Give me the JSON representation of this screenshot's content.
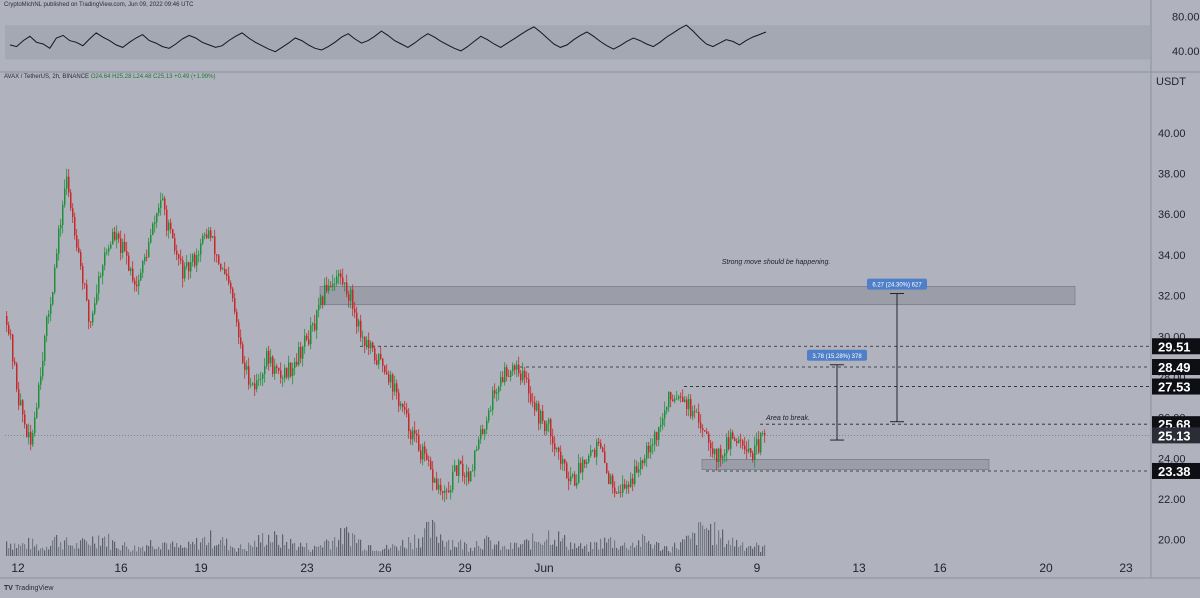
{
  "header": {
    "published": "CryptoMichNL published on TradingView.com, Jun 09, 2022 09:46 UTC",
    "symbol": "AVAX / TetherUS, 2h, BINANCE",
    "ohlc": "O24.64  H25.28  L24.48  C25.13  +0.49 (+1.99%)"
  },
  "footer": {
    "logo_mark": "TV",
    "logo_text": "TradingView"
  },
  "colors": {
    "background": "#b0b3be",
    "up": "#1f8f3a",
    "down": "#c42a2a",
    "zone_fill": "#9b9ea9",
    "axis_text": "#1f222b",
    "badge_bg": "#0d0f14",
    "measure_label_bg": "#4f7fc9"
  },
  "chart_data": [
    {
      "type": "line",
      "name": "RSI panel",
      "yticks": [
        40,
        80
      ],
      "ytick_labels": [
        "40.00",
        "80.00"
      ],
      "band": [
        30,
        70
      ],
      "ylim": [
        20,
        90
      ],
      "values": [
        47,
        45,
        52,
        57,
        50,
        48,
        43,
        55,
        58,
        52,
        50,
        46,
        54,
        61,
        56,
        52,
        47,
        44,
        50,
        55,
        59,
        52,
        49,
        45,
        43,
        48,
        54,
        58,
        55,
        50,
        47,
        44,
        46,
        52,
        57,
        61,
        55,
        50,
        46,
        42,
        39,
        44,
        49,
        55,
        52,
        47,
        43,
        41,
        45,
        50,
        56,
        60,
        54,
        49,
        52,
        57,
        63,
        58,
        52,
        48,
        44,
        49,
        55,
        60,
        56,
        51,
        47,
        43,
        40,
        45,
        51,
        57,
        53,
        48,
        44,
        49,
        54,
        59,
        64,
        68,
        62,
        55,
        48,
        44,
        47,
        53,
        58,
        62,
        57,
        51,
        46,
        42,
        46,
        51,
        55,
        52,
        48,
        45,
        50,
        56,
        61,
        66,
        70,
        63,
        55,
        48,
        45,
        49,
        53,
        51,
        47,
        52,
        56,
        59,
        62
      ]
    },
    {
      "type": "candlestick",
      "name": "AVAX / TetherUS, 2h, BINANCE",
      "ylabel": "USDT",
      "ylim": [
        19.2,
        42.5
      ],
      "yticks": [
        20,
        22,
        24,
        26,
        28,
        30,
        32,
        34,
        36,
        38,
        40
      ],
      "ytick_labels": [
        "20.00",
        "22.00",
        "24.00",
        "26.00",
        "28.00",
        "30.00",
        "32.00",
        "34.00",
        "36.00",
        "38.00",
        "40.00"
      ],
      "x_tick_labels": [
        "12",
        "16",
        "19",
        "23",
        "26",
        "29",
        "Jun",
        "6",
        "9",
        "13",
        "16",
        "20",
        "23"
      ],
      "price_path": [
        31.0,
        27.0,
        24.5,
        29.0,
        33.0,
        37.8,
        34.5,
        30.5,
        33.5,
        35.0,
        34.0,
        32.5,
        34.5,
        36.8,
        34.5,
        33.0,
        34.0,
        35.2,
        33.5,
        32.0,
        28.5,
        27.5,
        29.0,
        28.0,
        28.5,
        29.5,
        30.5,
        32.5,
        33.0,
        32.0,
        30.0,
        29.0,
        28.5,
        27.0,
        25.5,
        24.3,
        23.0,
        22.0,
        23.5,
        23.2,
        25.0,
        27.0,
        28.2,
        28.7,
        27.5,
        26.0,
        25.3,
        23.5,
        23.0,
        24.3,
        24.6,
        22.8,
        22.5,
        23.2,
        24.6,
        25.3,
        27.0,
        27.3,
        26.0,
        25.5,
        24.0,
        24.8,
        25.1,
        24.2,
        25.13
      ],
      "volume": [
        6,
        4,
        5,
        3,
        7,
        5,
        4,
        6,
        8,
        5,
        4,
        3,
        5,
        6,
        4,
        3,
        5,
        7,
        6,
        4,
        3,
        5,
        8,
        6,
        5,
        4,
        3,
        6,
        7,
        9,
        5,
        4,
        3,
        4,
        6,
        8,
        10,
        7,
        5,
        4,
        6,
        5,
        3,
        4,
        5,
        7,
        9,
        6,
        4,
        3,
        5,
        6,
        4,
        5,
        6,
        4,
        3,
        5,
        7,
        12,
        8,
        6,
        5,
        4,
        3
      ],
      "last_price": "25.13",
      "price_badges": [
        "29.51",
        "28.49",
        "27.53",
        "25.68",
        "25.13",
        "23.38"
      ],
      "levels": [
        29.51,
        28.49,
        27.53,
        25.68,
        23.38
      ],
      "zones": [
        {
          "low": 31.55,
          "high": 32.45
        },
        {
          "low": 23.45,
          "high": 23.95
        }
      ],
      "measures": [
        {
          "label": "3.78 (15.28%) 378",
          "from": 24.9,
          "to": 28.6
        },
        {
          "label": "6.27 (24.30%) 627",
          "from": 25.8,
          "to": 32.1
        }
      ],
      "annotations": [
        "Strong move should be happening.",
        "Area to break."
      ]
    }
  ]
}
